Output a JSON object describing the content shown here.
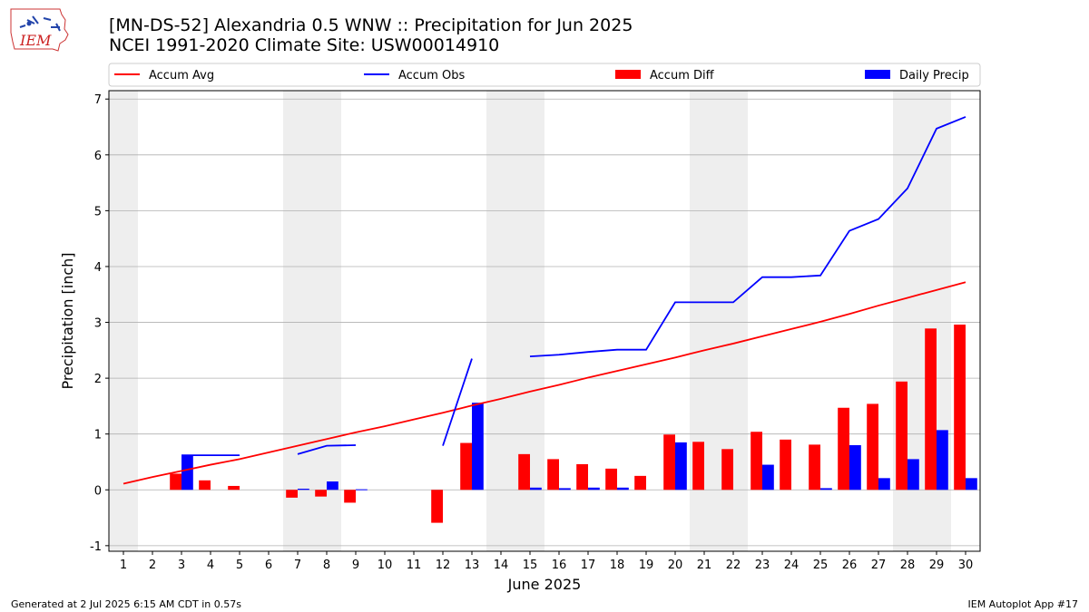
{
  "header": {
    "title_line1": "[MN-DS-52] Alexandria 0.5 WNW :: Precipitation for Jun 2025",
    "title_line2": "NCEI 1991-2020 Climate Site: USW00014910",
    "logo_text": "IEM"
  },
  "footer": {
    "left": "Generated at 2 Jul 2025 6:15 AM CDT in 0.57s",
    "right": "IEM Autoplot App #17"
  },
  "colors": {
    "avg": "#ff0000",
    "obs": "#0000ff",
    "diff": "#ff0000",
    "daily": "#0000ff",
    "weekend": "#eeeeee",
    "grid": "#b0b0b0"
  },
  "chart_data": {
    "type": "bar",
    "xlabel": "June 2025",
    "ylabel": "Precipitation [inch]",
    "xlim": [
      0.5,
      30.5
    ],
    "ylim": [
      -1.1,
      7.15
    ],
    "yticks": [
      -1,
      0,
      1,
      2,
      3,
      4,
      5,
      6,
      7
    ],
    "grid": true,
    "legend_placement": "top",
    "legend": [
      "Accum Avg",
      "Accum Obs",
      "Accum Diff",
      "Daily Precip"
    ],
    "days": [
      1,
      2,
      3,
      4,
      5,
      6,
      7,
      8,
      9,
      10,
      11,
      12,
      13,
      14,
      15,
      16,
      17,
      18,
      19,
      20,
      21,
      22,
      23,
      24,
      25,
      26,
      27,
      28,
      29,
      30
    ],
    "shaded_days": [
      1,
      7,
      8,
      14,
      15,
      21,
      22,
      28,
      29
    ],
    "series": [
      {
        "name": "Accum Avg",
        "kind": "line",
        "values": [
          0.11,
          0.23,
          0.34,
          0.45,
          0.55,
          0.67,
          0.79,
          0.91,
          1.03,
          1.14,
          1.26,
          1.38,
          1.51,
          1.63,
          1.76,
          1.88,
          2.01,
          2.13,
          2.25,
          2.37,
          2.5,
          2.62,
          2.75,
          2.88,
          3.01,
          3.15,
          3.3,
          3.44,
          3.58,
          3.72
        ]
      },
      {
        "name": "Accum Obs",
        "kind": "line",
        "values": [
          null,
          null,
          0.62,
          0.62,
          0.62,
          null,
          0.64,
          0.79,
          0.8,
          null,
          null,
          0.79,
          2.35,
          null,
          2.39,
          2.42,
          2.47,
          2.51,
          2.51,
          3.36,
          3.36,
          3.36,
          3.81,
          3.81,
          3.84,
          4.64,
          4.85,
          5.4,
          6.47,
          6.68
        ]
      },
      {
        "name": "Accum Diff",
        "kind": "bar",
        "values": [
          null,
          null,
          0.29,
          0.17,
          0.07,
          null,
          -0.14,
          -0.12,
          -0.23,
          null,
          null,
          -0.59,
          0.84,
          null,
          0.64,
          0.55,
          0.46,
          0.38,
          0.25,
          0.99,
          0.86,
          0.73,
          1.04,
          0.9,
          0.81,
          1.47,
          1.54,
          1.94,
          2.89,
          2.96
        ]
      },
      {
        "name": "Daily Precip",
        "kind": "bar",
        "values": [
          null,
          null,
          0.62,
          null,
          null,
          null,
          0.02,
          0.15,
          0.01,
          null,
          null,
          null,
          1.56,
          null,
          0.04,
          0.03,
          0.04,
          0.04,
          null,
          0.85,
          null,
          null,
          0.45,
          null,
          0.03,
          0.8,
          0.21,
          0.55,
          1.07,
          0.21
        ]
      }
    ]
  }
}
